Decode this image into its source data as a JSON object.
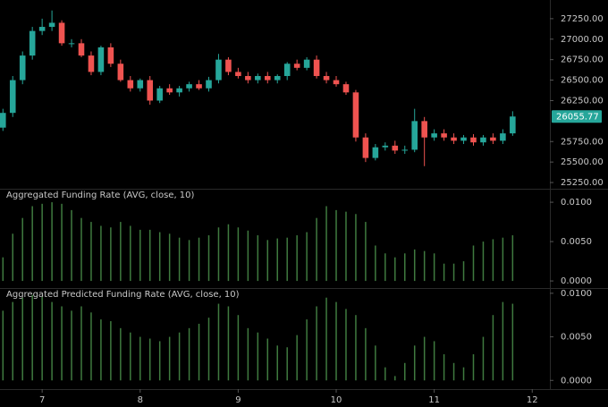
{
  "chart_data": [
    {
      "type": "candlestick",
      "x": [
        6.6,
        6.7,
        6.8,
        6.9,
        7.0,
        7.1,
        7.2,
        7.3,
        7.4,
        7.5,
        7.6,
        7.7,
        7.8,
        7.9,
        8.0,
        8.1,
        8.2,
        8.3,
        8.4,
        8.5,
        8.6,
        8.7,
        8.8,
        8.9,
        9.0,
        9.1,
        9.2,
        9.3,
        9.4,
        9.5,
        9.6,
        9.7,
        9.8,
        9.9,
        10.0,
        10.1,
        10.2,
        10.3,
        10.4,
        10.5,
        10.6,
        10.7,
        10.8,
        10.9,
        11.0,
        11.1,
        11.2,
        11.3,
        11.4,
        11.5,
        11.6,
        11.7,
        11.8
      ],
      "open": [
        25920,
        26100,
        26500,
        26800,
        27100,
        27150,
        27200,
        26950,
        26950,
        26800,
        26600,
        26900,
        26700,
        26500,
        26400,
        26500,
        26250,
        26400,
        26350,
        26400,
        26450,
        26400,
        26500,
        26750,
        26600,
        26550,
        26500,
        26550,
        26500,
        26550,
        26700,
        26650,
        26750,
        26550,
        26500,
        26450,
        26350,
        25800,
        25550,
        25680,
        25700,
        25640,
        25650,
        26000,
        25800,
        25850,
        25800,
        25760,
        25800,
        25740,
        25800,
        25760,
        25850
      ],
      "high": [
        26150,
        26550,
        26850,
        27150,
        27250,
        27350,
        27230,
        27000,
        27000,
        26850,
        26920,
        26950,
        26750,
        26550,
        26520,
        26550,
        26430,
        26450,
        26430,
        26480,
        26500,
        26540,
        26820,
        26780,
        26650,
        26600,
        26580,
        26600,
        26570,
        26720,
        26750,
        26780,
        26800,
        26600,
        26550,
        26480,
        26380,
        25850,
        25720,
        25740,
        25760,
        25700,
        26150,
        26050,
        25900,
        25900,
        25850,
        25830,
        25840,
        25830,
        25850,
        25900,
        26120
      ],
      "low": [
        25880,
        26050,
        26450,
        26750,
        27050,
        27100,
        26920,
        26900,
        26780,
        26560,
        26560,
        26660,
        26480,
        26360,
        26360,
        26200,
        26220,
        26320,
        26300,
        26360,
        26380,
        26360,
        26460,
        26560,
        26520,
        26460,
        26460,
        26460,
        26460,
        26500,
        26620,
        26620,
        26520,
        26460,
        26420,
        26320,
        25750,
        25500,
        25520,
        25640,
        25600,
        25600,
        25620,
        25450,
        25760,
        25760,
        25720,
        25720,
        25700,
        25700,
        25720,
        25720,
        25820
      ],
      "close": [
        26100,
        26500,
        26800,
        27100,
        27150,
        27200,
        26950,
        26950,
        26800,
        26600,
        26900,
        26700,
        26500,
        26400,
        26500,
        26250,
        26400,
        26350,
        26400,
        26450,
        26400,
        26500,
        26750,
        26600,
        26550,
        26500,
        26550,
        26500,
        26550,
        26700,
        26650,
        26750,
        26550,
        26500,
        26450,
        26350,
        25800,
        25550,
        25680,
        25700,
        25640,
        25650,
        26000,
        25800,
        25850,
        25800,
        25760,
        25800,
        25740,
        25800,
        25760,
        25850,
        26055.77
      ],
      "up_color": "#26a69a",
      "down_color": "#ef5350",
      "xlim": [
        6.57,
        12.18
      ],
      "ylim": [
        25185,
        27478
      ],
      "yticks": [
        {
          "value": 25250,
          "label": "25250.00"
        },
        {
          "value": 25500,
          "label": "25500.00"
        },
        {
          "value": 25750,
          "label": "25750.00"
        },
        {
          "value": 26250,
          "label": "26250.00"
        },
        {
          "value": 26500,
          "label": "26500.00"
        },
        {
          "value": 26750,
          "label": "26750.00"
        },
        {
          "value": 27000,
          "label": "27000.00"
        },
        {
          "value": 27250,
          "label": "27250.00"
        }
      ]
    },
    {
      "type": "bar",
      "title": "Aggregated Funding Rate (AVG, close, 10)",
      "color": "#3f7a3f",
      "x": [
        6.6,
        6.7,
        6.8,
        6.9,
        7.0,
        7.1,
        7.2,
        7.3,
        7.4,
        7.5,
        7.6,
        7.7,
        7.8,
        7.9,
        8.0,
        8.1,
        8.2,
        8.3,
        8.4,
        8.5,
        8.6,
        8.7,
        8.8,
        8.9,
        9.0,
        9.1,
        9.2,
        9.3,
        9.4,
        9.5,
        9.6,
        9.7,
        9.8,
        9.9,
        10.0,
        10.1,
        10.2,
        10.3,
        10.4,
        10.5,
        10.6,
        10.7,
        10.8,
        10.9,
        11.0,
        11.1,
        11.2,
        11.3,
        11.4,
        11.5,
        11.6,
        11.7,
        11.8
      ],
      "values": [
        0.003,
        0.006,
        0.008,
        0.0095,
        0.0098,
        0.01,
        0.0098,
        0.009,
        0.008,
        0.0075,
        0.007,
        0.0068,
        0.0075,
        0.007,
        0.0065,
        0.0065,
        0.0062,
        0.006,
        0.0055,
        0.0052,
        0.0055,
        0.0058,
        0.0068,
        0.0072,
        0.0068,
        0.0064,
        0.0058,
        0.0052,
        0.0054,
        0.0055,
        0.0058,
        0.0062,
        0.008,
        0.0095,
        0.009,
        0.0088,
        0.0085,
        0.0075,
        0.0045,
        0.0035,
        0.003,
        0.0035,
        0.004,
        0.0038,
        0.0035,
        0.0022,
        0.0022,
        0.0025,
        0.0045,
        0.005,
        0.0053,
        0.0055,
        0.0058
      ],
      "xlim": [
        6.57,
        12.18
      ],
      "ylim": [
        -0.0009,
        0.0116
      ],
      "yticks": [
        {
          "value": 0,
          "label": "0.0000"
        },
        {
          "value": 0.005,
          "label": "0.0050"
        },
        {
          "value": 0.01,
          "label": "0.0100"
        }
      ]
    },
    {
      "type": "bar",
      "title": "Aggregated Predicted Funding Rate (AVG, close, 10)",
      "color": "#3f7a3f",
      "x": [
        6.6,
        6.7,
        6.8,
        6.9,
        7.0,
        7.1,
        7.2,
        7.3,
        7.4,
        7.5,
        7.6,
        7.7,
        7.8,
        7.9,
        8.0,
        8.1,
        8.2,
        8.3,
        8.4,
        8.5,
        8.6,
        8.7,
        8.8,
        8.9,
        9.0,
        9.1,
        9.2,
        9.3,
        9.4,
        9.5,
        9.6,
        9.7,
        9.8,
        9.9,
        10.0,
        10.1,
        10.2,
        10.3,
        10.4,
        10.5,
        10.6,
        10.7,
        10.8,
        10.9,
        11.0,
        11.1,
        11.2,
        11.3,
        11.4,
        11.5,
        11.6,
        11.7,
        11.8
      ],
      "values": [
        0.008,
        0.009,
        0.0095,
        0.0098,
        0.0096,
        0.009,
        0.0085,
        0.008,
        0.0085,
        0.0078,
        0.007,
        0.0068,
        0.006,
        0.0055,
        0.005,
        0.0048,
        0.0045,
        0.005,
        0.0055,
        0.006,
        0.0065,
        0.0072,
        0.0088,
        0.0085,
        0.0075,
        0.006,
        0.0055,
        0.0048,
        0.004,
        0.0038,
        0.0052,
        0.007,
        0.0085,
        0.0095,
        0.009,
        0.0082,
        0.0075,
        0.006,
        0.004,
        0.0015,
        0.0005,
        0.002,
        0.004,
        0.005,
        0.0045,
        0.003,
        0.002,
        0.0015,
        0.003,
        0.005,
        0.0075,
        0.009,
        0.0088
      ],
      "xlim": [
        6.57,
        12.18
      ],
      "ylim": [
        -0.001,
        0.0105
      ],
      "yticks": [
        {
          "value": 0,
          "label": "0.0000"
        },
        {
          "value": 0.005,
          "label": "0.0050"
        },
        {
          "value": 0.01,
          "label": "0.0100"
        }
      ],
      "xticks": [
        7,
        8,
        9,
        10,
        11,
        12
      ]
    }
  ]
}
